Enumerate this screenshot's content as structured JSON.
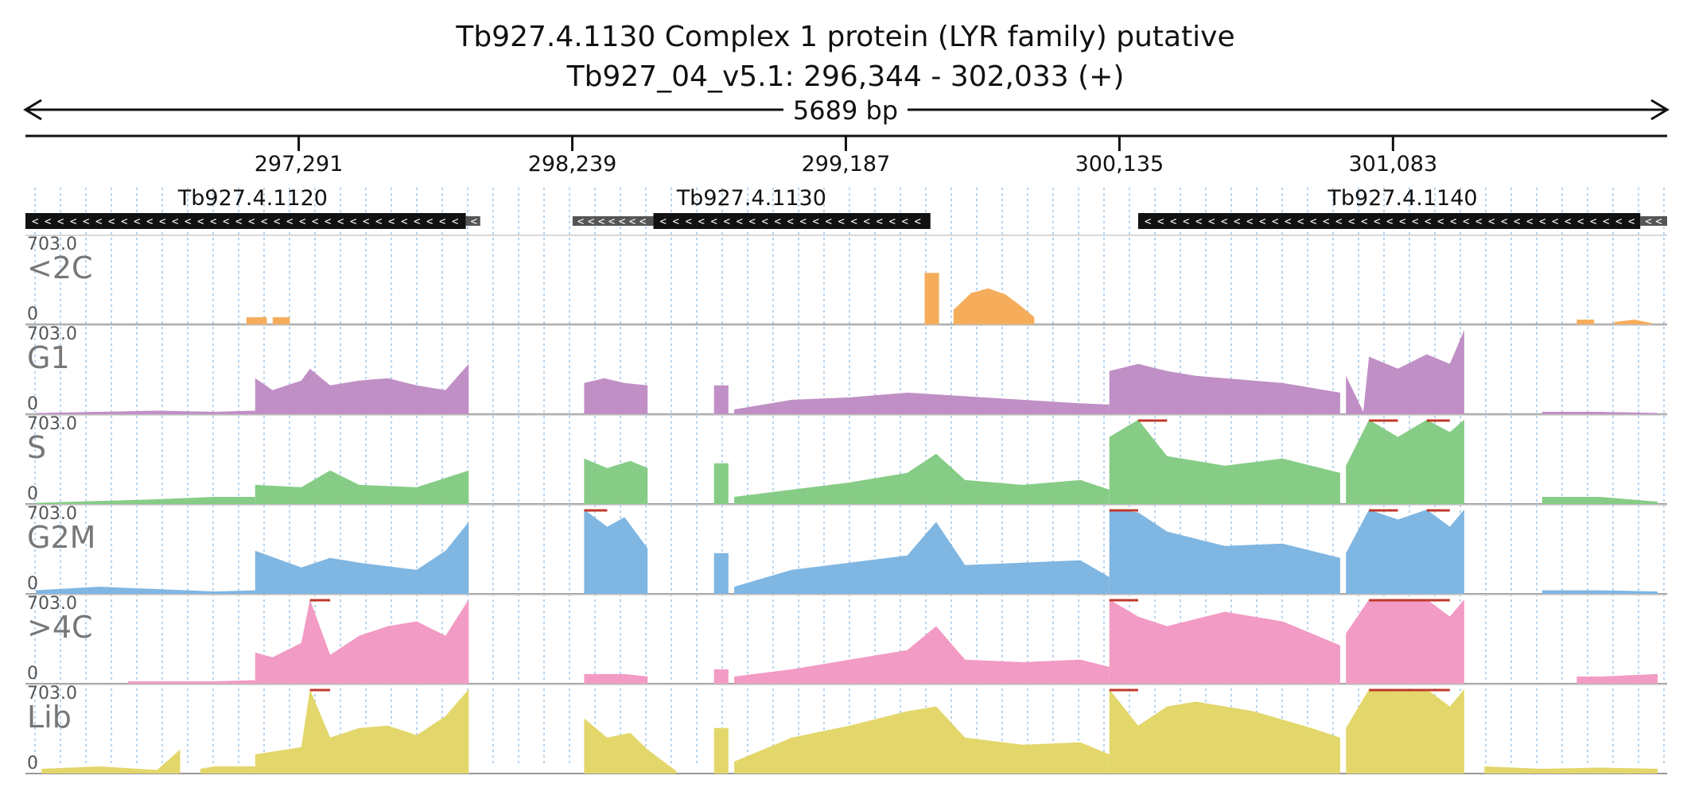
{
  "header": {
    "title": "Tb927.4.1130  Complex 1 protein (LYR family)  putative",
    "location": "Tb927_04_v5.1: 296,344 - 302,033 (+)",
    "span": "5689 bp"
  },
  "chart_data": {
    "type": "area",
    "xlim": [
      296344,
      302033
    ],
    "ticks": [
      "297,291",
      "298,239",
      "299,187",
      "300,135",
      "301,083"
    ],
    "tick_values": [
      297291,
      298239,
      299187,
      300135,
      301083
    ],
    "genes": [
      {
        "name": "Tb927.4.1120",
        "start": 296344,
        "end": 297870,
        "utr": [
          [
            297870,
            297920
          ]
        ],
        "strand": "-"
      },
      {
        "name": "Tb927.4.1130",
        "start": 298520,
        "end": 299480,
        "utr": [
          [
            298240,
            298520
          ]
        ],
        "strand": "-"
      },
      {
        "name": "Tb927.4.1140",
        "start": 300200,
        "end": 301940,
        "utr": [
          [
            301940,
            302033
          ]
        ],
        "strand": "-"
      }
    ],
    "ylim": [
      0,
      703.0
    ],
    "scale_max_label": "703.0",
    "scale_min_label": "0",
    "tracks": [
      {
        "name": "<2C",
        "color": "#f5ad5b",
        "segments": [
          {
            "x": [
              297110,
              297180,
              297181,
              297200
            ],
            "y": [
              60,
              60,
              0,
              0
            ]
          },
          {
            "x": [
              297201,
              297260
            ],
            "y": [
              60,
              60
            ]
          },
          {
            "x": [
              299460,
              299510
            ],
            "y": [
              430,
              430
            ]
          },
          {
            "x": [
              299560,
              299620,
              299680,
              299740,
              299790,
              299840
            ],
            "y": [
              120,
              260,
              300,
              250,
              160,
              60
            ]
          },
          {
            "x": [
              301720,
              301780
            ],
            "y": [
              40,
              40
            ]
          },
          {
            "x": [
              301850,
              301920,
              301980
            ],
            "y": [
              20,
              40,
              10
            ]
          }
        ]
      },
      {
        "name": "G1",
        "color": "#c08fc6",
        "segments": [
          {
            "x": [
              296380,
              296600,
              296800,
              297000,
              297140
            ],
            "y": [
              10,
              20,
              30,
              20,
              30
            ]
          },
          {
            "x": [
              297140,
              297200,
              297300,
              297330,
              297400,
              297500,
              297600,
              297700,
              297800,
              297880
            ],
            "y": [
              300,
              200,
              280,
              380,
              240,
              280,
              300,
              240,
              200,
              420
            ]
          },
          {
            "x": [
              298280,
              298350,
              298420,
              298500
            ],
            "y": [
              260,
              300,
              260,
              240
            ]
          },
          {
            "x": [
              298730,
              298780
            ],
            "y": [
              240,
              240
            ]
          },
          {
            "x": [
              298800,
              299000,
              299200,
              299400,
              299600,
              299800,
              300000,
              300100
            ],
            "y": [
              40,
              120,
              140,
              180,
              150,
              120,
              90,
              80
            ]
          },
          {
            "x": [
              300100,
              300200,
              300300,
              300400,
              300500,
              300600,
              300700,
              300800,
              300900
            ],
            "y": [
              360,
              420,
              360,
              320,
              300,
              280,
              260,
              220,
              180
            ]
          },
          {
            "x": [
              300920,
              300980,
              301000,
              301100,
              301200,
              301280,
              301330
            ],
            "y": [
              320,
              20,
              480,
              380,
              500,
              420,
              720
            ]
          },
          {
            "x": [
              301600,
              301800,
              302000
            ],
            "y": [
              20,
              20,
              10
            ]
          }
        ]
      },
      {
        "name": "S",
        "color": "#86cc86",
        "segments": [
          {
            "x": [
              296380,
              296800,
              297000,
              297140
            ],
            "y": [
              10,
              40,
              60,
              60
            ]
          },
          {
            "x": [
              297140,
              297300,
              297400,
              297500,
              297700,
              297880
            ],
            "y": [
              160,
              140,
              280,
              160,
              140,
              280
            ]
          },
          {
            "x": [
              298280,
              298360,
              298440,
              298500
            ],
            "y": [
              380,
              300,
              360,
              300
            ]
          },
          {
            "x": [
              298730,
              298780
            ],
            "y": [
              340,
              340
            ]
          },
          {
            "x": [
              298800,
              299000,
              299200,
              299400,
              299500,
              299600,
              299800,
              300000,
              300100
            ],
            "y": [
              60,
              120,
              180,
              260,
              420,
              200,
              160,
              200,
              120
            ]
          },
          {
            "x": [
              300100,
              300200,
              300300,
              300500,
              300700,
              300900
            ],
            "y": [
              560,
              703,
              400,
              320,
              380,
              260
            ]
          },
          {
            "x": [
              300920,
              301000,
              301100,
              301200,
              301280,
              301330
            ],
            "y": [
              320,
              703,
              560,
              703,
              600,
              703
            ]
          },
          {
            "x": [
              301600,
              301800,
              302000
            ],
            "y": [
              60,
              60,
              20
            ]
          }
        ]
      },
      {
        "name": "G2M",
        "color": "#7fb6e2",
        "segments": [
          {
            "x": [
              296380,
              296600,
              296800,
              297000,
              297140
            ],
            "y": [
              30,
              60,
              40,
              20,
              30
            ]
          },
          {
            "x": [
              297140,
              297300,
              297400,
              297500,
              297700,
              297800,
              297880
            ],
            "y": [
              360,
              220,
              300,
              260,
              200,
              360,
              600
            ]
          },
          {
            "x": [
              298280,
              298360,
              298420,
              298500
            ],
            "y": [
              703,
              560,
              640,
              380
            ]
          },
          {
            "x": [
              298730,
              298780
            ],
            "y": [
              340,
              340
            ]
          },
          {
            "x": [
              298800,
              299000,
              299200,
              299400,
              299500,
              299600,
              299800,
              300000,
              300100
            ],
            "y": [
              60,
              200,
              260,
              320,
              600,
              240,
              260,
              280,
              140
            ]
          },
          {
            "x": [
              300100,
              300200,
              300300,
              300500,
              300700,
              300900
            ],
            "y": [
              703,
              680,
              520,
              400,
              420,
              300
            ]
          },
          {
            "x": [
              300920,
              301000,
              301100,
              301200,
              301280,
              301330
            ],
            "y": [
              340,
              703,
              620,
              703,
              560,
              703
            ]
          },
          {
            "x": [
              301600,
              301800,
              302000
            ],
            "y": [
              30,
              30,
              20
            ]
          }
        ]
      },
      {
        "name": ">4C",
        "color": "#f29bc4",
        "segments": [
          {
            "x": [
              296700,
              297000,
              297140
            ],
            "y": [
              20,
              20,
              30
            ]
          },
          {
            "x": [
              297140,
              297200,
              297300,
              297330,
              297400,
              297500,
              297600,
              297700,
              297800,
              297880
            ],
            "y": [
              260,
              220,
              340,
              703,
              240,
              400,
              480,
              520,
              400,
              703
            ]
          },
          {
            "x": [
              298280,
              298420,
              298500
            ],
            "y": [
              80,
              80,
              60
            ]
          },
          {
            "x": [
              298730,
              298780
            ],
            "y": [
              120,
              120
            ]
          },
          {
            "x": [
              298800,
              299000,
              299200,
              299400,
              299500,
              299600,
              299800,
              300000,
              300100
            ],
            "y": [
              60,
              120,
              200,
              280,
              480,
              200,
              180,
              200,
              140
            ]
          },
          {
            "x": [
              300100,
              300200,
              300300,
              300500,
              300700,
              300900
            ],
            "y": [
              703,
              560,
              480,
              600,
              520,
              320
            ]
          },
          {
            "x": [
              300920,
              301000,
              301100,
              301200,
              301280,
              301330
            ],
            "y": [
              420,
              703,
              703,
              703,
              560,
              703
            ]
          },
          {
            "x": [
              301720,
              301800,
              302000
            ],
            "y": [
              60,
              60,
              80
            ]
          }
        ]
      },
      {
        "name": "Lib",
        "color": "#e3d76c",
        "segments": [
          {
            "x": [
              296400,
              296600,
              296800,
              296880
            ],
            "y": [
              40,
              60,
              30,
              200
            ]
          },
          {
            "x": [
              296950,
              297000,
              297140
            ],
            "y": [
              40,
              60,
              60
            ]
          },
          {
            "x": [
              297140,
              297300,
              297330,
              297400,
              297500,
              297600,
              297700,
              297800,
              297880
            ],
            "y": [
              160,
              220,
              703,
              300,
              380,
              400,
              320,
              480,
              703
            ]
          },
          {
            "x": [
              298280,
              298360,
              298440,
              298500,
              298600
            ],
            "y": [
              460,
              300,
              340,
              200,
              20
            ]
          },
          {
            "x": [
              298730,
              298780
            ],
            "y": [
              380,
              380
            ]
          },
          {
            "x": [
              298800,
              299000,
              299200,
              299400,
              299500,
              299600,
              299800,
              300000,
              300100
            ],
            "y": [
              100,
              300,
              400,
              520,
              560,
              300,
              240,
              260,
              160
            ]
          },
          {
            "x": [
              300100,
              300200,
              300300,
              300400,
              300600,
              300800,
              300900
            ],
            "y": [
              703,
              400,
              560,
              600,
              520,
              380,
              300
            ]
          },
          {
            "x": [
              300920,
              301000,
              301100,
              301200,
              301280,
              301330
            ],
            "y": [
              380,
              703,
              703,
              703,
              560,
              703
            ]
          },
          {
            "x": [
              301400,
              301600,
              301800,
              302000
            ],
            "y": [
              60,
              40,
              50,
              40
            ]
          }
        ]
      }
    ]
  }
}
